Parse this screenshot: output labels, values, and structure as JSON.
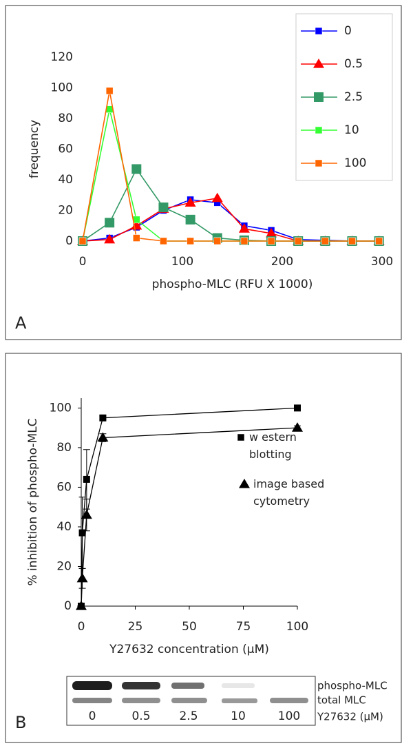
{
  "chart_data": [
    {
      "type": "line",
      "panel": "A",
      "x_label": "phospho-MLC (RFU X 1000)",
      "y_label": "frequency",
      "x": [
        0,
        27,
        54,
        81,
        108,
        135,
        162,
        189,
        216,
        243,
        270,
        297
      ],
      "xlim": [
        0,
        300
      ],
      "xticks": [
        0,
        100,
        200,
        300
      ],
      "ylim": [
        0,
        120
      ],
      "yticks": [
        0,
        20,
        40,
        60,
        80,
        100,
        120
      ],
      "series": [
        {
          "name": "0",
          "color": "#0000ff",
          "marker": "square",
          "values": [
            0,
            2,
            9,
            20,
            27,
            25,
            10,
            7,
            1,
            0.5,
            0,
            0
          ]
        },
        {
          "name": "0.5",
          "color": "#ff0000",
          "marker": "triangle",
          "values": [
            0,
            1,
            10,
            21,
            25,
            28,
            8,
            5,
            0,
            0,
            0,
            0
          ]
        },
        {
          "name": "2.5",
          "color": "#339966",
          "marker": "big-square",
          "values": [
            0,
            12,
            47,
            22,
            14,
            2,
            0.5,
            0,
            0,
            0,
            0,
            0
          ]
        },
        {
          "name": "10",
          "color": "#33ff33",
          "marker": "square",
          "values": [
            0,
            86,
            14,
            0,
            0,
            0,
            0,
            0,
            0,
            0,
            0,
            0
          ]
        },
        {
          "name": "100",
          "color": "#ff6600",
          "marker": "square",
          "values": [
            0,
            98,
            2,
            0,
            0,
            0,
            0,
            0,
            0,
            0,
            0,
            0
          ]
        }
      ]
    },
    {
      "type": "scatter",
      "panel": "B",
      "x_label": "Y27632 concentration (µM)",
      "y_label": "% inhibition of phospho-MLC",
      "x": [
        0,
        0.5,
        2.5,
        10,
        100
      ],
      "xlim": [
        0,
        100
      ],
      "xticks": [
        0,
        25,
        50,
        75,
        100
      ],
      "ylim": [
        0,
        105
      ],
      "yticks": [
        0,
        20,
        40,
        60,
        80,
        100
      ],
      "series": [
        {
          "name": "w estern blotting",
          "color": "#000000",
          "marker": "square",
          "values": [
            0,
            37,
            64,
            95,
            100
          ],
          "errors": [
            0,
            18,
            15,
            1,
            1
          ]
        },
        {
          "name": "image based cytometry",
          "color": "#000000",
          "marker": "triangle",
          "values": [
            0,
            14,
            46,
            85,
            90
          ],
          "errors": [
            0,
            5,
            8,
            2,
            1
          ]
        }
      ]
    }
  ],
  "blot": {
    "rows": [
      "phospho-MLC",
      "total MLC"
    ],
    "axis_label": "Y27632 (µM)",
    "lanes": [
      0,
      0.5,
      2.5,
      10,
      100
    ]
  }
}
